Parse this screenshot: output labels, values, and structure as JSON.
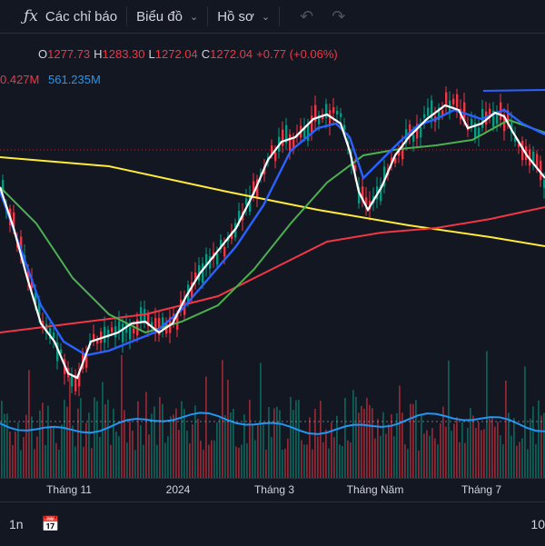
{
  "toolbar": {
    "indicators_label": "Các chỉ báo",
    "chart_label": "Biểu đồ",
    "profile_label": "Hồ sơ"
  },
  "legend": {
    "o_label": "O",
    "o_value": "1277.73",
    "h_label": "H",
    "h_value": "1283.30",
    "l_label": "L",
    "l_value": "1272.04",
    "c_label": "C",
    "c_value": "1272.04",
    "change": "+0.77 (+0.06%)",
    "volume_value": "0.427M",
    "volume_ma_value": "561.235M"
  },
  "xaxis": {
    "labels": [
      "Tháng 11",
      "2024",
      "Tháng 3",
      "Tháng Năm",
      "Tháng 7"
    ]
  },
  "bottom": {
    "interval": "1n",
    "right_text": "10"
  },
  "colors": {
    "background": "#131722",
    "up": "#089981",
    "down": "#f23645",
    "ma_white": "#ffffff",
    "ma_blue": "#2962ff",
    "ma_green": "#4caf50",
    "ma_red": "#f23645",
    "ma_yellow": "#ffeb3b",
    "volume_ma": "#2196f3"
  },
  "icons": [
    "fx-icon",
    "chevron-down-icon",
    "undo-icon",
    "redo-icon",
    "calendar-range-icon"
  ]
}
